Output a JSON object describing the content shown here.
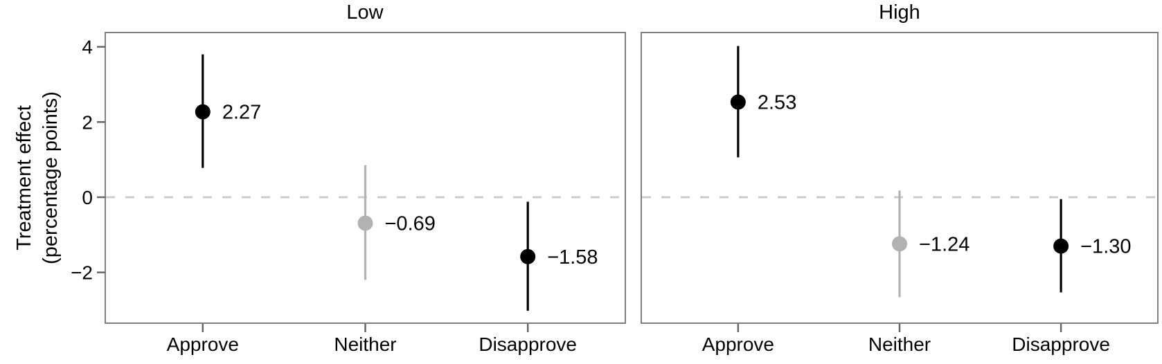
{
  "chart_data": {
    "type": "pointrange",
    "title": "",
    "ylabel_lines": [
      "Treatment effect",
      "(percentage points)"
    ],
    "xlabel": "",
    "categories": [
      "Approve",
      "Neither",
      "Disapprove"
    ],
    "y_ticks": [
      4,
      2,
      0,
      -2
    ],
    "y_tick_labels": [
      "4",
      "2",
      "0",
      "−2"
    ],
    "ylim": [
      -3.35,
      4.38
    ],
    "zero_reference_line": 0,
    "grid": "off",
    "legend": "none",
    "facets": [
      "Low",
      "High"
    ],
    "panels": [
      {
        "label": "Low",
        "points": [
          {
            "category": "Approve",
            "value": 2.27,
            "label": "2.27",
            "ci_low": 0.78,
            "ci_high": 3.8,
            "color": "black"
          },
          {
            "category": "Neither",
            "value": -0.69,
            "label": "−0.69",
            "ci_low": -2.2,
            "ci_high": 0.85,
            "color": "gray"
          },
          {
            "category": "Disapprove",
            "value": -1.58,
            "label": "−1.58",
            "ci_low": -3.02,
            "ci_high": -0.12,
            "color": "black"
          }
        ]
      },
      {
        "label": "High",
        "points": [
          {
            "category": "Approve",
            "value": 2.53,
            "label": "2.53",
            "ci_low": 1.06,
            "ci_high": 4.02,
            "color": "black"
          },
          {
            "category": "Neither",
            "value": -1.24,
            "label": "−1.24",
            "ci_low": -2.66,
            "ci_high": 0.18,
            "color": "gray"
          },
          {
            "category": "Disapprove",
            "value": -1.3,
            "label": "−1.30",
            "ci_low": -2.53,
            "ci_high": -0.05,
            "color": "black"
          }
        ]
      }
    ],
    "colors": {
      "black_point": "#000000",
      "gray_point": "#b2b2b4",
      "zero_line": "#c9c9cb",
      "panel_border": "#7e7e80",
      "tick": "#666668",
      "text": "#000000",
      "background": "#ffffff"
    }
  }
}
